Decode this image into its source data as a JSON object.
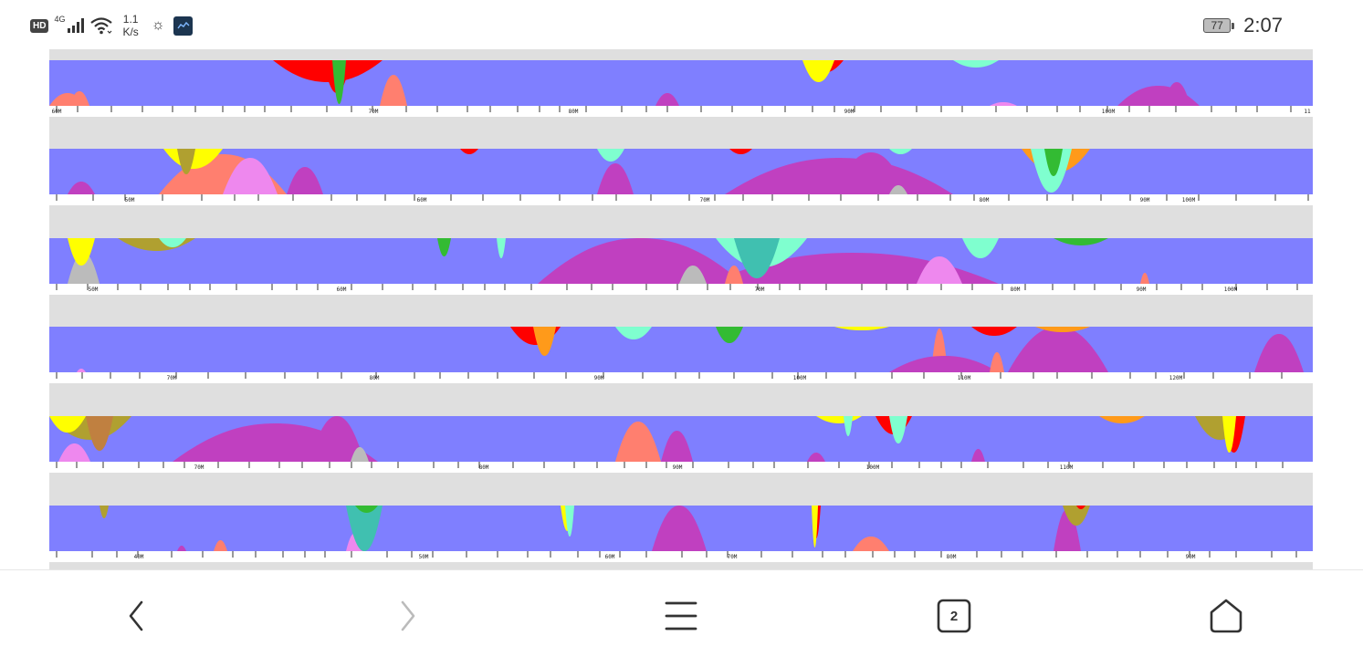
{
  "status_bar": {
    "hd": "HD",
    "network": "4G",
    "speed_value": "1.1",
    "speed_unit": "K/s",
    "battery": "77",
    "time": "2:07"
  },
  "tracks": [
    {
      "labels": [
        "60M",
        "70M",
        "80M",
        "90M",
        "100M",
        "11"
      ]
    },
    {
      "labels": [
        "50M",
        "60M",
        "70M",
        "80M",
        "90M",
        "100M"
      ]
    },
    {
      "labels": [
        "50M",
        "60M",
        "70M",
        "80M",
        "90M",
        "100M"
      ]
    },
    {
      "labels": [
        "70M",
        "80M",
        "90M",
        "100M",
        "110M",
        "120M"
      ]
    },
    {
      "labels": [
        "70M",
        "80M",
        "90M",
        "100M",
        "110M"
      ]
    },
    {
      "labels": [
        "40M",
        "50M",
        "60M",
        "70M",
        "80M",
        "90M"
      ]
    }
  ],
  "nav": {
    "tab_count": "2"
  },
  "colors": {
    "base": "#7f7fff",
    "gap": "#dfdfdf",
    "magenta": "#c040c0",
    "salmon": "#ff7f6f",
    "red": "#ff0000",
    "yellow": "#ffff00",
    "orange": "#ff9a1a",
    "green": "#33bb33",
    "teal": "#40c0b0",
    "aqua": "#7fffcf",
    "olive": "#b0a030",
    "pink": "#ee88ee",
    "brown": "#c08040",
    "gray": "#bbbbbb"
  }
}
